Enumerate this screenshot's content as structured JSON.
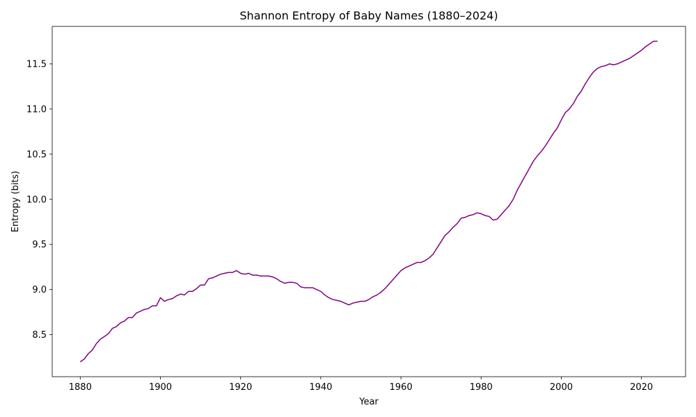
{
  "chart_data": {
    "type": "line",
    "title": "Shannon Entropy of Baby Names (1880–2024)",
    "xlabel": "Year",
    "ylabel": "Entropy (bits)",
    "xlim": [
      1873,
      2031
    ],
    "ylim": [
      8.035,
      11.915
    ],
    "x_ticks": [
      1880,
      1900,
      1920,
      1940,
      1960,
      1980,
      2000,
      2020
    ],
    "y_ticks": [
      8.5,
      9.0,
      9.5,
      10.0,
      10.5,
      11.0,
      11.5
    ],
    "y_tick_labels": [
      "8.5",
      "9.0",
      "9.5",
      "10.0",
      "10.5",
      "11.0",
      "11.5"
    ],
    "grid": false,
    "legend": "none",
    "line_color": "#800080",
    "series": [
      {
        "x": [
          1880,
          1881,
          1882,
          1883,
          1884,
          1885,
          1886,
          1887,
          1888,
          1889,
          1890,
          1891,
          1892,
          1893,
          1894,
          1895,
          1896,
          1897,
          1898,
          1899,
          1900,
          1901,
          1902,
          1903,
          1904,
          1905,
          1906,
          1907,
          1908,
          1909,
          1910,
          1911,
          1912,
          1913,
          1914,
          1915,
          1916,
          1917,
          1918,
          1919,
          1920,
          1921,
          1922,
          1923,
          1924,
          1925,
          1926,
          1927,
          1928,
          1929,
          1930,
          1931,
          1932,
          1933,
          1934,
          1935,
          1936,
          1937,
          1938,
          1939,
          1940,
          1941,
          1942,
          1943,
          1944,
          1945,
          1946,
          1947,
          1948,
          1949,
          1950,
          1951,
          1952,
          1953,
          1954,
          1955,
          1956,
          1957,
          1958,
          1959,
          1960,
          1961,
          1962,
          1963,
          1964,
          1965,
          1966,
          1967,
          1968,
          1969,
          1970,
          1971,
          1972,
          1973,
          1974,
          1975,
          1976,
          1977,
          1978,
          1979,
          1980,
          1981,
          1982,
          1983,
          1984,
          1985,
          1986,
          1987,
          1988,
          1989,
          1990,
          1991,
          1992,
          1993,
          1994,
          1995,
          1996,
          1997,
          1998,
          1999,
          2000,
          2001,
          2002,
          2003,
          2004,
          2005,
          2006,
          2007,
          2008,
          2009,
          2010,
          2011,
          2012,
          2013,
          2014,
          2015,
          2016,
          2017,
          2018,
          2019,
          2020,
          2021,
          2022,
          2023,
          2024
        ],
        "y": [
          8.2,
          8.23,
          8.29,
          8.33,
          8.4,
          8.45,
          8.48,
          8.51,
          8.57,
          8.59,
          8.63,
          8.65,
          8.69,
          8.69,
          8.74,
          8.76,
          8.78,
          8.79,
          8.82,
          8.82,
          8.91,
          8.87,
          8.89,
          8.9,
          8.93,
          8.95,
          8.94,
          8.98,
          8.98,
          9.01,
          9.05,
          9.05,
          9.12,
          9.13,
          9.15,
          9.17,
          9.18,
          9.19,
          9.19,
          9.21,
          9.18,
          9.17,
          9.18,
          9.16,
          9.16,
          9.15,
          9.15,
          9.15,
          9.14,
          9.12,
          9.09,
          9.07,
          9.08,
          9.08,
          9.07,
          9.03,
          9.02,
          9.02,
          9.02,
          9.0,
          8.98,
          8.94,
          8.91,
          8.89,
          8.88,
          8.87,
          8.85,
          8.83,
          8.85,
          8.86,
          8.87,
          8.87,
          8.89,
          8.92,
          8.94,
          8.97,
          9.01,
          9.06,
          9.11,
          9.16,
          9.21,
          9.24,
          9.26,
          9.28,
          9.3,
          9.3,
          9.32,
          9.35,
          9.39,
          9.46,
          9.53,
          9.6,
          9.64,
          9.69,
          9.73,
          9.79,
          9.8,
          9.82,
          9.83,
          9.85,
          9.84,
          9.82,
          9.81,
          9.77,
          9.78,
          9.83,
          9.88,
          9.93,
          10.0,
          10.1,
          10.18,
          10.26,
          10.34,
          10.42,
          10.48,
          10.53,
          10.59,
          10.66,
          10.73,
          10.79,
          10.88,
          10.96,
          11.0,
          11.06,
          11.14,
          11.2,
          11.28,
          11.35,
          11.41,
          11.45,
          11.47,
          11.48,
          11.5,
          11.49,
          11.5,
          11.52,
          11.54,
          11.56,
          11.59,
          11.62,
          11.65,
          11.69,
          11.72,
          11.75,
          11.75
        ]
      }
    ]
  }
}
